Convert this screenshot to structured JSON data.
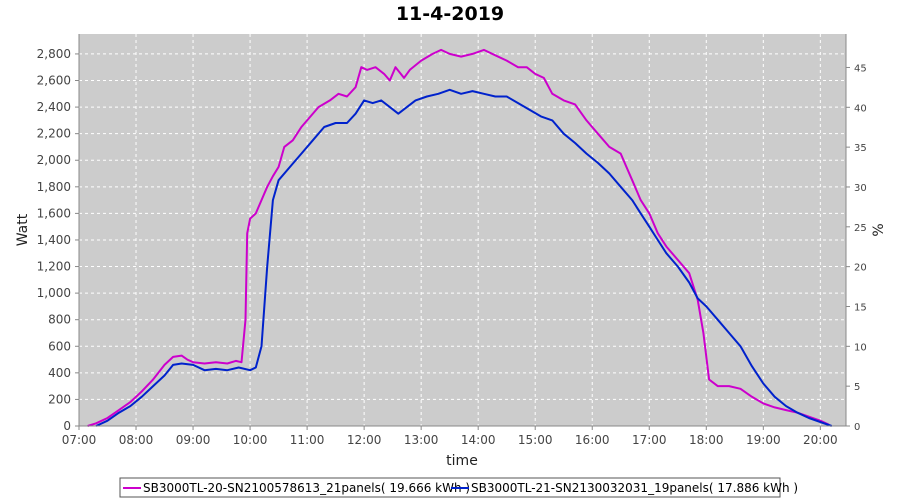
{
  "chart_data": {
    "type": "line",
    "title": "11-4-2019",
    "xlabel": "time",
    "ylabel": "Watt",
    "y2label": "%",
    "xlim": [
      7.0,
      20.45
    ],
    "ylim": [
      0,
      2950
    ],
    "y2lim": [
      0,
      49.2
    ],
    "x_ticks": [
      "07:00",
      "08:00",
      "09:00",
      "10:00",
      "11:00",
      "12:00",
      "13:00",
      "14:00",
      "15:00",
      "16:00",
      "17:00",
      "18:00",
      "19:00",
      "20:00"
    ],
    "y_ticks": [
      "0",
      "200",
      "400",
      "600",
      "800",
      "1,000",
      "1,200",
      "1,400",
      "1,600",
      "1,800",
      "2,000",
      "2,200",
      "2,400",
      "2,600",
      "2,800"
    ],
    "y2_ticks": [
      "0",
      "5",
      "10",
      "15",
      "20",
      "25",
      "30",
      "35",
      "40",
      "45"
    ],
    "grid": true,
    "legend_position": "bottom",
    "background": "#cccccc",
    "series": [
      {
        "name": "SB3000TL-20-SN2100578613_21panels( 19.666 kWh )",
        "color": "#cc00cc",
        "points": [
          [
            7.15,
            0
          ],
          [
            7.3,
            20
          ],
          [
            7.5,
            60
          ],
          [
            7.7,
            120
          ],
          [
            7.9,
            180
          ],
          [
            8.1,
            260
          ],
          [
            8.3,
            350
          ],
          [
            8.5,
            460
          ],
          [
            8.65,
            520
          ],
          [
            8.8,
            530
          ],
          [
            8.9,
            500
          ],
          [
            9.0,
            480
          ],
          [
            9.2,
            470
          ],
          [
            9.4,
            480
          ],
          [
            9.6,
            470
          ],
          [
            9.75,
            490
          ],
          [
            9.85,
            480
          ],
          [
            9.92,
            800
          ],
          [
            9.95,
            1450
          ],
          [
            10.0,
            1560
          ],
          [
            10.1,
            1600
          ],
          [
            10.2,
            1700
          ],
          [
            10.3,
            1800
          ],
          [
            10.4,
            1880
          ],
          [
            10.5,
            1950
          ],
          [
            10.6,
            2100
          ],
          [
            10.75,
            2150
          ],
          [
            10.9,
            2250
          ],
          [
            11.0,
            2300
          ],
          [
            11.2,
            2400
          ],
          [
            11.4,
            2450
          ],
          [
            11.55,
            2500
          ],
          [
            11.7,
            2480
          ],
          [
            11.85,
            2550
          ],
          [
            11.95,
            2700
          ],
          [
            12.05,
            2680
          ],
          [
            12.2,
            2700
          ],
          [
            12.35,
            2650
          ],
          [
            12.45,
            2600
          ],
          [
            12.55,
            2700
          ],
          [
            12.7,
            2620
          ],
          [
            12.8,
            2680
          ],
          [
            13.0,
            2750
          ],
          [
            13.2,
            2800
          ],
          [
            13.35,
            2830
          ],
          [
            13.5,
            2800
          ],
          [
            13.7,
            2780
          ],
          [
            13.9,
            2800
          ],
          [
            14.1,
            2830
          ],
          [
            14.3,
            2790
          ],
          [
            14.5,
            2750
          ],
          [
            14.7,
            2700
          ],
          [
            14.85,
            2700
          ],
          [
            15.0,
            2650
          ],
          [
            15.15,
            2620
          ],
          [
            15.3,
            2500
          ],
          [
            15.5,
            2450
          ],
          [
            15.7,
            2420
          ],
          [
            15.9,
            2300
          ],
          [
            16.1,
            2200
          ],
          [
            16.3,
            2100
          ],
          [
            16.5,
            2050
          ],
          [
            16.6,
            1950
          ],
          [
            16.7,
            1850
          ],
          [
            16.85,
            1700
          ],
          [
            17.0,
            1600
          ],
          [
            17.15,
            1450
          ],
          [
            17.3,
            1350
          ],
          [
            17.5,
            1250
          ],
          [
            17.7,
            1150
          ],
          [
            17.85,
            950
          ],
          [
            17.95,
            700
          ],
          [
            18.05,
            350
          ],
          [
            18.2,
            300
          ],
          [
            18.4,
            300
          ],
          [
            18.6,
            280
          ],
          [
            18.8,
            220
          ],
          [
            19.0,
            170
          ],
          [
            19.2,
            140
          ],
          [
            19.4,
            120
          ],
          [
            19.6,
            100
          ],
          [
            19.8,
            70
          ],
          [
            20.0,
            40
          ],
          [
            20.15,
            10
          ]
        ]
      },
      {
        "name": "SB3000TL-21-SN2130032031_19panels( 17.886 kWh )",
        "color": "#0022cc",
        "points": [
          [
            7.3,
            0
          ],
          [
            7.5,
            40
          ],
          [
            7.7,
            100
          ],
          [
            7.9,
            150
          ],
          [
            8.1,
            220
          ],
          [
            8.3,
            300
          ],
          [
            8.5,
            380
          ],
          [
            8.65,
            460
          ],
          [
            8.8,
            470
          ],
          [
            9.0,
            460
          ],
          [
            9.2,
            420
          ],
          [
            9.4,
            430
          ],
          [
            9.6,
            420
          ],
          [
            9.8,
            440
          ],
          [
            10.0,
            420
          ],
          [
            10.1,
            440
          ],
          [
            10.2,
            600
          ],
          [
            10.3,
            1200
          ],
          [
            10.4,
            1700
          ],
          [
            10.5,
            1850
          ],
          [
            10.7,
            1950
          ],
          [
            10.9,
            2050
          ],
          [
            11.1,
            2150
          ],
          [
            11.3,
            2250
          ],
          [
            11.5,
            2280
          ],
          [
            11.7,
            2280
          ],
          [
            11.85,
            2350
          ],
          [
            12.0,
            2450
          ],
          [
            12.15,
            2430
          ],
          [
            12.3,
            2450
          ],
          [
            12.45,
            2400
          ],
          [
            12.6,
            2350
          ],
          [
            12.75,
            2400
          ],
          [
            12.9,
            2450
          ],
          [
            13.1,
            2480
          ],
          [
            13.3,
            2500
          ],
          [
            13.5,
            2530
          ],
          [
            13.7,
            2500
          ],
          [
            13.9,
            2520
          ],
          [
            14.1,
            2500
          ],
          [
            14.3,
            2480
          ],
          [
            14.5,
            2480
          ],
          [
            14.7,
            2430
          ],
          [
            14.9,
            2380
          ],
          [
            15.1,
            2330
          ],
          [
            15.3,
            2300
          ],
          [
            15.5,
            2200
          ],
          [
            15.7,
            2130
          ],
          [
            15.9,
            2050
          ],
          [
            16.1,
            1980
          ],
          [
            16.3,
            1900
          ],
          [
            16.5,
            1800
          ],
          [
            16.7,
            1700
          ],
          [
            16.85,
            1600
          ],
          [
            17.0,
            1500
          ],
          [
            17.15,
            1400
          ],
          [
            17.3,
            1300
          ],
          [
            17.5,
            1200
          ],
          [
            17.7,
            1080
          ],
          [
            17.85,
            960
          ],
          [
            18.0,
            900
          ],
          [
            18.2,
            800
          ],
          [
            18.4,
            700
          ],
          [
            18.6,
            600
          ],
          [
            18.8,
            450
          ],
          [
            19.0,
            320
          ],
          [
            19.2,
            220
          ],
          [
            19.4,
            150
          ],
          [
            19.6,
            100
          ],
          [
            19.8,
            60
          ],
          [
            20.0,
            30
          ],
          [
            20.2,
            0
          ]
        ]
      }
    ]
  }
}
